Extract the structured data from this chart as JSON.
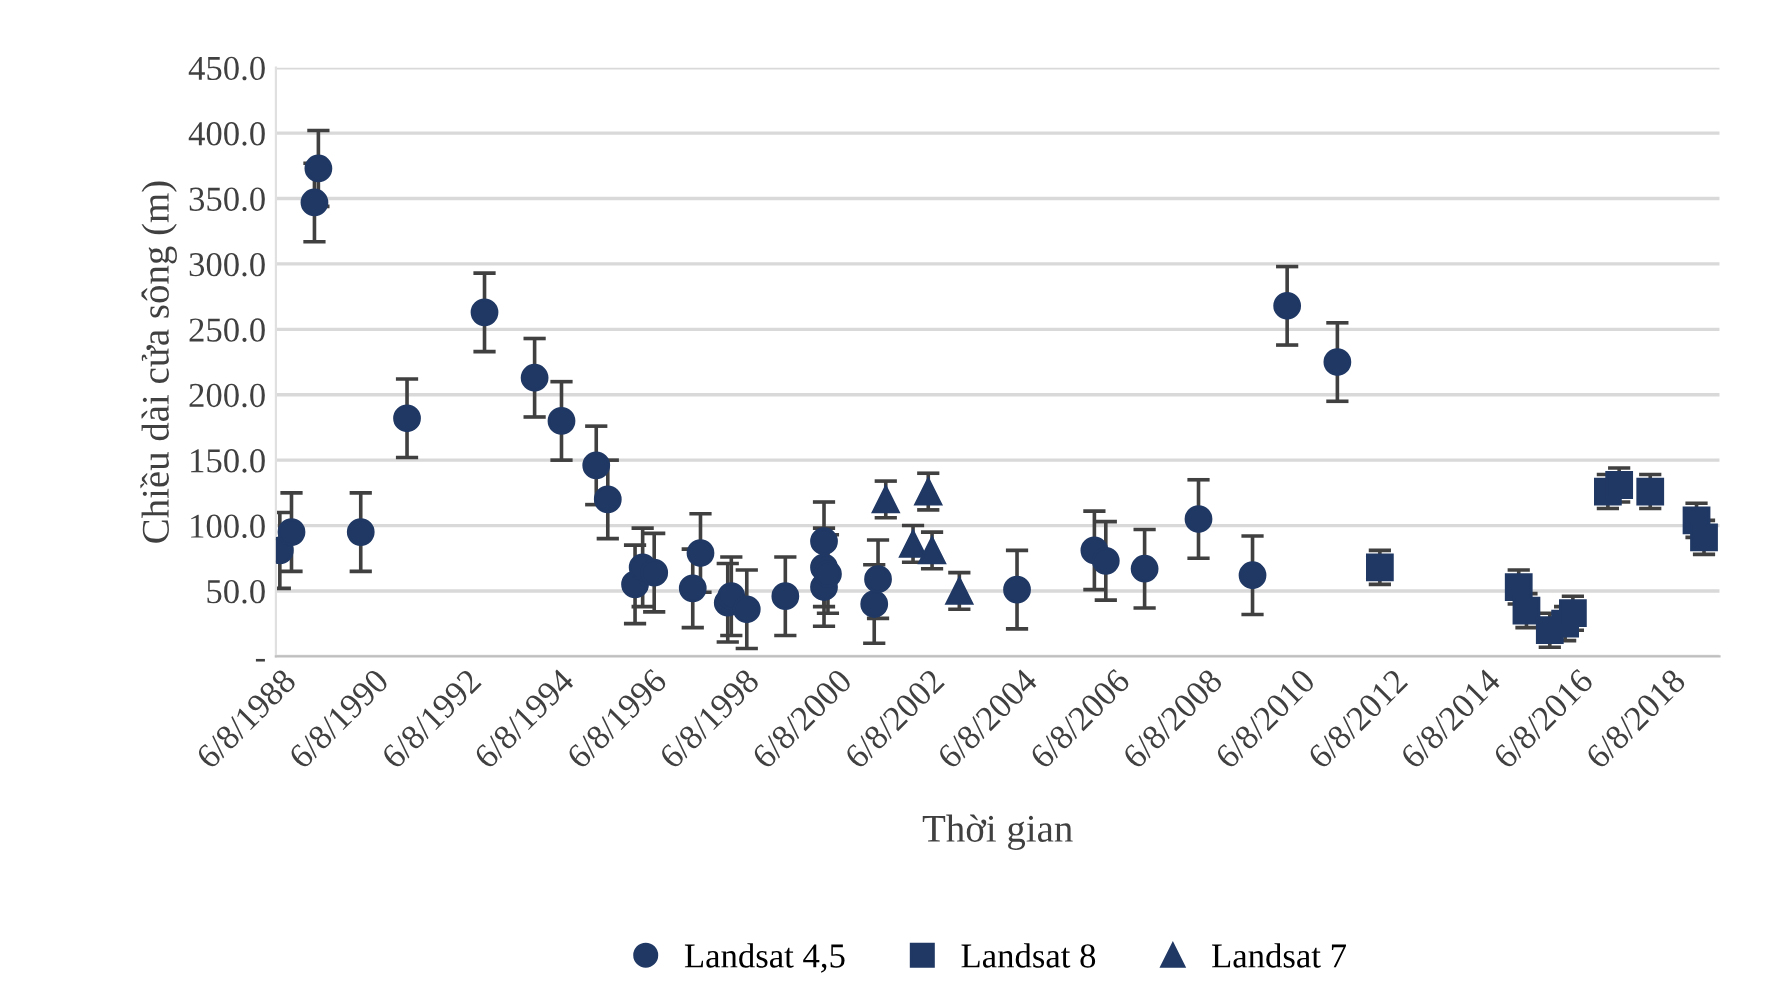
{
  "chart_data": {
    "type": "scatter",
    "xlabel": "Thời gian",
    "ylabel": "Chiều dài cửa sông (m)",
    "xlim": [
      "1988-05-01",
      "2019-07-01"
    ],
    "xticks": [
      {
        "value": "1988-06-08",
        "label": "6/8/1988"
      },
      {
        "value": "1990-06-08",
        "label": "6/8/1990"
      },
      {
        "value": "1992-06-08",
        "label": "6/8/1992"
      },
      {
        "value": "1994-06-08",
        "label": "6/8/1994"
      },
      {
        "value": "1996-06-08",
        "label": "6/8/1996"
      },
      {
        "value": "1998-06-08",
        "label": "6/8/1998"
      },
      {
        "value": "2000-06-08",
        "label": "6/8/2000"
      },
      {
        "value": "2002-06-08",
        "label": "6/8/2002"
      },
      {
        "value": "2004-06-08",
        "label": "6/8/2004"
      },
      {
        "value": "2006-06-08",
        "label": "6/8/2006"
      },
      {
        "value": "2008-06-08",
        "label": "6/8/2008"
      },
      {
        "value": "2010-06-08",
        "label": "6/8/2010"
      },
      {
        "value": "2012-06-08",
        "label": "6/8/2012"
      },
      {
        "value": "2014-06-08",
        "label": "6/8/2014"
      },
      {
        "value": "2016-06-08",
        "label": "6/8/2016"
      },
      {
        "value": "2018-06-08",
        "label": "6/8/2018"
      }
    ],
    "ylim": [
      0,
      450
    ],
    "yticks": [
      {
        "value": 0,
        "label": "-"
      },
      {
        "value": 50,
        "label": "50.0"
      },
      {
        "value": 100,
        "label": "100.0"
      },
      {
        "value": 150,
        "label": "150.0"
      },
      {
        "value": 200,
        "label": "200.0"
      },
      {
        "value": 250,
        "label": "250.0"
      },
      {
        "value": 300,
        "label": "300.0"
      },
      {
        "value": 350,
        "label": "350.0"
      },
      {
        "value": 400,
        "label": "400.0"
      },
      {
        "value": 450,
        "label": "450.0"
      }
    ],
    "grid": "y",
    "legend": "bottom",
    "series": [
      {
        "name": "Landsat 4,5",
        "color": "#203864",
        "marker": "circle",
        "x": [
          "1988-06",
          "1988-09",
          "1989-03",
          "1989-04",
          "1990-03",
          "1991-03",
          "1992-11",
          "1993-12",
          "1994-07",
          "1995-04",
          "1995-07",
          "1996-02",
          "1996-04",
          "1996-07",
          "1997-05",
          "1997-07",
          "1998-02",
          "1998-03",
          "1998-07",
          "1999-05",
          "2000-03",
          "2000-03",
          "2000-03",
          "2000-04",
          "2001-04",
          "2001-05",
          "2004-05",
          "2006-01",
          "2006-04",
          "2007-02",
          "2008-04",
          "2009-06",
          "2010-03",
          "2011-04"
        ],
        "values": [
          81,
          95,
          347,
          373,
          95,
          182,
          263,
          213,
          180,
          146,
          120,
          55,
          68,
          64,
          52,
          79,
          41,
          46,
          36,
          46,
          68,
          88,
          53,
          63,
          40,
          59,
          51,
          81,
          73,
          67,
          105,
          62,
          268,
          225
        ],
        "errors": [
          29,
          30,
          30,
          29,
          30,
          30,
          30,
          30,
          30,
          30,
          30,
          30,
          30,
          30,
          30,
          30,
          30,
          30,
          30,
          30,
          30,
          30,
          30,
          30,
          30,
          30,
          30,
          30,
          30,
          30,
          30,
          30,
          30,
          30
        ]
      },
      {
        "name": "Landsat 8",
        "color": "#203864",
        "marker": "square",
        "x": [
          "2012-03",
          "2015-03",
          "2015-05",
          "2015-11",
          "2016-03",
          "2016-05",
          "2017-02",
          "2017-05",
          "2018-01",
          "2019-01",
          "2019-03"
        ],
        "values": [
          68,
          53,
          35,
          20,
          25,
          33,
          126,
          131,
          126,
          104,
          91
        ],
        "errors": [
          13,
          13,
          13,
          13,
          13,
          13,
          13,
          13,
          13,
          13,
          13
        ]
      },
      {
        "name": "Landsat 7",
        "color": "#203864",
        "marker": "triangle",
        "x": [
          "2001-07",
          "2002-02",
          "2002-06",
          "2002-07",
          "2003-02"
        ],
        "values": [
          120,
          86,
          126,
          81,
          50
        ],
        "errors": [
          14,
          14,
          14,
          14,
          14
        ]
      }
    ]
  }
}
